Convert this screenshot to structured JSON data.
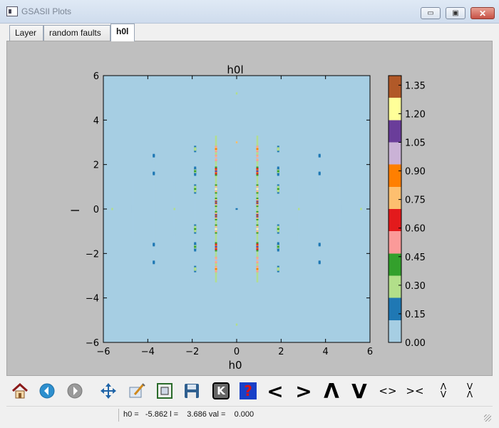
{
  "window": {
    "title": "GSASII Plots"
  },
  "titlebar_buttons": {
    "minimize": "▭",
    "maximize": "▣",
    "close": "✕"
  },
  "tabs": [
    {
      "label": "Layer",
      "active": false
    },
    {
      "label": "random faults",
      "active": false
    },
    {
      "label": "h0l",
      "active": true
    }
  ],
  "chart_data": {
    "type": "heatmap",
    "title": "h0l",
    "xlabel": "h0",
    "ylabel": "l",
    "xlim": [
      -6,
      6
    ],
    "ylim": [
      -6,
      6
    ],
    "xticks": [
      "−6",
      "−4",
      "−2",
      "0",
      "2",
      "4",
      "6"
    ],
    "yticks": [
      "−6",
      "−4",
      "−2",
      "0",
      "2",
      "4",
      "6"
    ],
    "background_value": 0.06,
    "colorbar": {
      "min": 0.0,
      "max": 1.4,
      "ticks": [
        "0.00",
        "0.15",
        "0.30",
        "0.45",
        "0.60",
        "0.75",
        "0.90",
        "1.05",
        "1.20",
        "1.35"
      ],
      "colors": [
        "#a6cee3",
        "#1f78b4",
        "#b2df8a",
        "#33a02c",
        "#fb9a99",
        "#e31a1c",
        "#fdbf6f",
        "#ff7f00",
        "#cab2d6",
        "#6a3d9a",
        "#ffff99",
        "#b15928"
      ]
    },
    "streaks": [
      {
        "h": -0.93,
        "l_range": [
          -3.3,
          3.3
        ],
        "peak": 1.35,
        "peaks_at": [
          -2.7,
          -2.3,
          -1.7,
          -0.9,
          -0.3,
          0.3,
          0.9,
          1.7,
          2.3,
          2.7
        ]
      },
      {
        "h": 0.93,
        "l_range": [
          -3.3,
          3.3
        ],
        "peak": 1.35,
        "peaks_at": [
          -2.7,
          -2.3,
          -1.7,
          -0.9,
          -0.3,
          0.3,
          0.9,
          1.7,
          2.3,
          2.7
        ]
      },
      {
        "h": -1.87,
        "l_range": [
          -2.9,
          2.9
        ],
        "peak": 0.45,
        "peaks_at": [
          -2.7,
          -1.7,
          -0.9,
          0.9,
          1.7,
          2.7
        ]
      },
      {
        "h": 1.87,
        "l_range": [
          -2.9,
          2.9
        ],
        "peak": 0.45,
        "peaks_at": [
          -2.7,
          -1.7,
          -0.9,
          0.9,
          1.7,
          2.7
        ]
      },
      {
        "h": -3.73,
        "l_range": [
          -2.7,
          2.7
        ],
        "peak": 0.2,
        "peaks_at": [
          -2.4,
          -1.6,
          1.6,
          2.4
        ]
      },
      {
        "h": 3.73,
        "l_range": [
          -2.7,
          2.7
        ],
        "peak": 0.2,
        "peaks_at": [
          -2.4,
          -1.6,
          1.6,
          2.4
        ]
      },
      {
        "h": -2.8,
        "l_range": [
          -1.5,
          1.5
        ],
        "peak": 0.12,
        "peaks_at": [
          -1.0,
          1.0
        ]
      },
      {
        "h": 2.8,
        "l_range": [
          -1.5,
          1.5
        ],
        "peak": 0.12,
        "peaks_at": [
          -1.0,
          1.0
        ]
      },
      {
        "h": -4.67,
        "l_range": [
          -1.3,
          1.3
        ],
        "peak": 0.1,
        "peaks_at": [
          0
        ]
      },
      {
        "h": 4.67,
        "l_range": [
          -1.3,
          1.3
        ],
        "peak": 0.1,
        "peaks_at": [
          0
        ]
      },
      {
        "h": 0,
        "l_range": [
          -2.2,
          2.2
        ],
        "peak": 0.12,
        "peaks_at": [
          0
        ]
      }
    ],
    "points": [
      {
        "h": 0,
        "l": 3.0,
        "value": 0.7
      },
      {
        "h": 0,
        "l": 5.2,
        "value": 0.3
      },
      {
        "h": 0,
        "l": -5.2,
        "value": 0.3
      },
      {
        "h": -5.6,
        "l": 0,
        "value": 0.3
      },
      {
        "h": 5.6,
        "l": 0,
        "value": 0.3
      },
      {
        "h": -2.8,
        "l": 0,
        "value": 0.25
      },
      {
        "h": 2.8,
        "l": 0,
        "value": 0.25
      }
    ]
  },
  "toolbar": [
    {
      "name": "home-icon",
      "kind": "home"
    },
    {
      "name": "back-icon",
      "kind": "back"
    },
    {
      "name": "forward-icon",
      "kind": "forward"
    },
    {
      "name": "pan-icon",
      "kind": "pan"
    },
    {
      "name": "configure-subplots-icon",
      "kind": "config"
    },
    {
      "name": "zoom-icon",
      "kind": "zoom"
    },
    {
      "name": "save-icon",
      "kind": "save"
    },
    {
      "name": "keyboard-shortcut-icon",
      "kind": "key",
      "glyph": "K"
    },
    {
      "name": "help-icon",
      "kind": "help",
      "glyph": "?"
    },
    {
      "name": "shift-left-button",
      "kind": "glyph",
      "glyph": "<"
    },
    {
      "name": "shift-right-button",
      "kind": "glyph",
      "glyph": ">"
    },
    {
      "name": "shift-up-button",
      "kind": "glyph",
      "glyph": "Λ"
    },
    {
      "name": "shift-down-button",
      "kind": "glyph",
      "glyph": "V"
    },
    {
      "name": "expand-horizontal-button",
      "kind": "small",
      "glyph": "<>"
    },
    {
      "name": "contract-horizontal-button",
      "kind": "small",
      "glyph": "><"
    },
    {
      "name": "expand-vertical-button",
      "kind": "vstack",
      "glyph": "Λ|V"
    },
    {
      "name": "contract-vertical-button",
      "kind": "vstack",
      "glyph": "V|Λ"
    }
  ],
  "status": {
    "text": "h0 =   -5.862 l =    3.686 val =    0.000"
  }
}
